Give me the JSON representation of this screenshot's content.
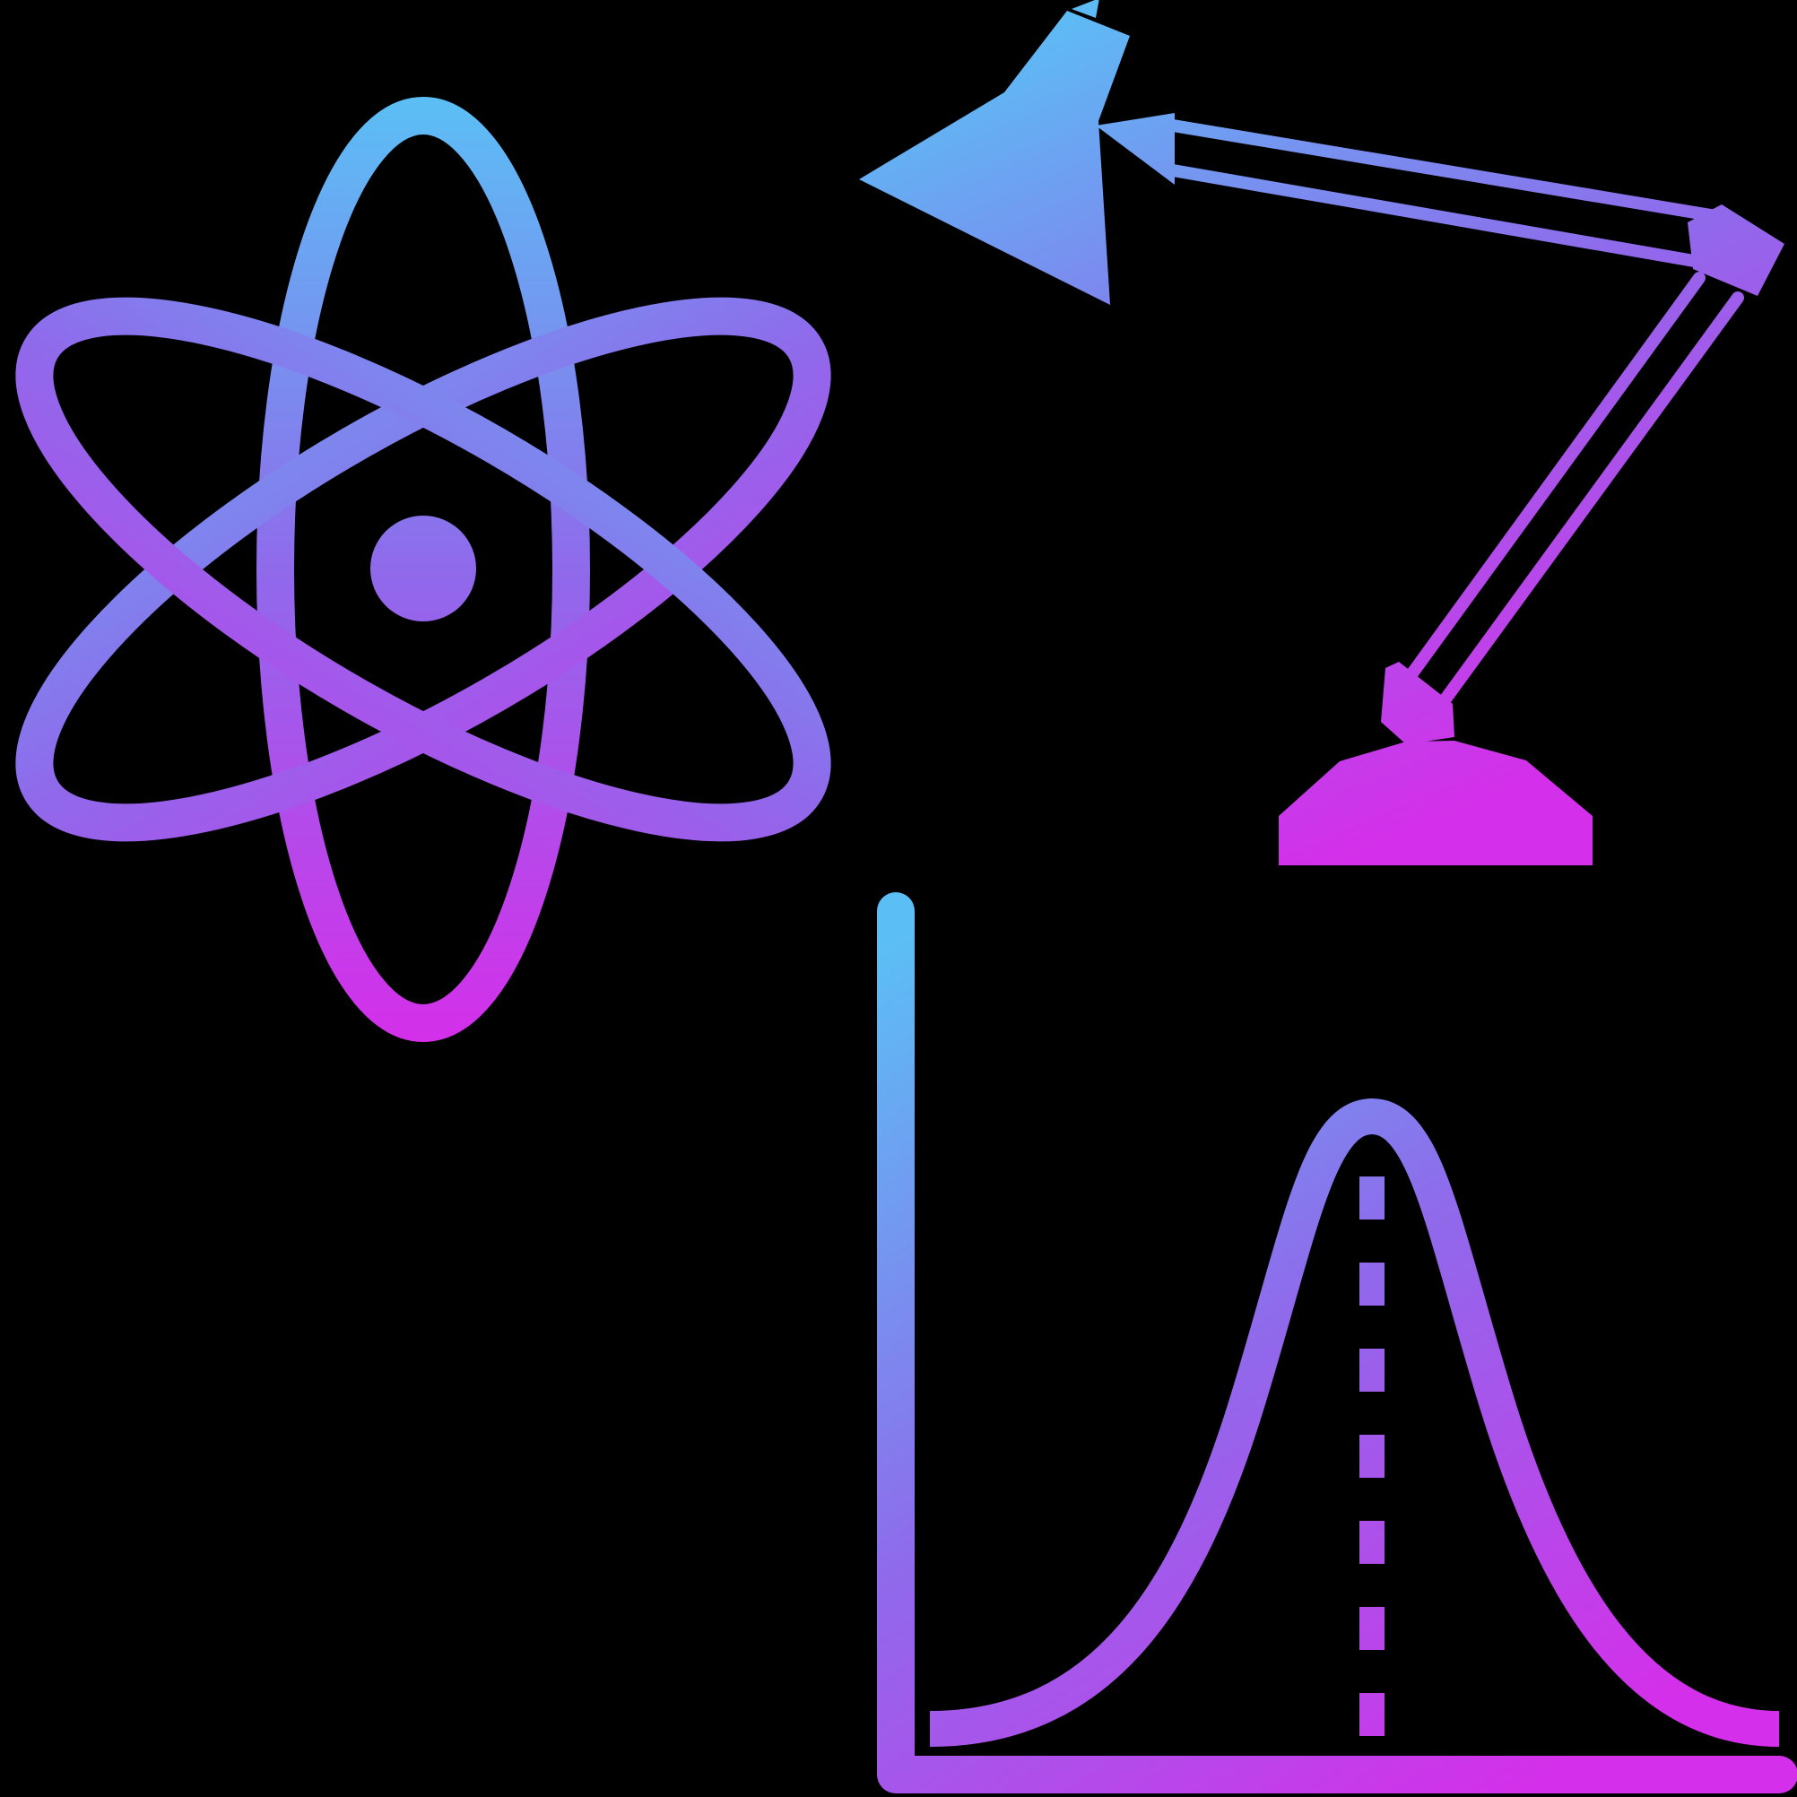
{
  "background_color": "#000000",
  "gradient": {
    "start_color": "#5BBFF5",
    "mid_color": "#8F6AEB",
    "end_color": "#D42FEA"
  },
  "icons": {
    "atom": "atom-icon",
    "desk_lamp": "desk-lamp-icon",
    "bell_curve": "bell-curve-chart-icon"
  }
}
